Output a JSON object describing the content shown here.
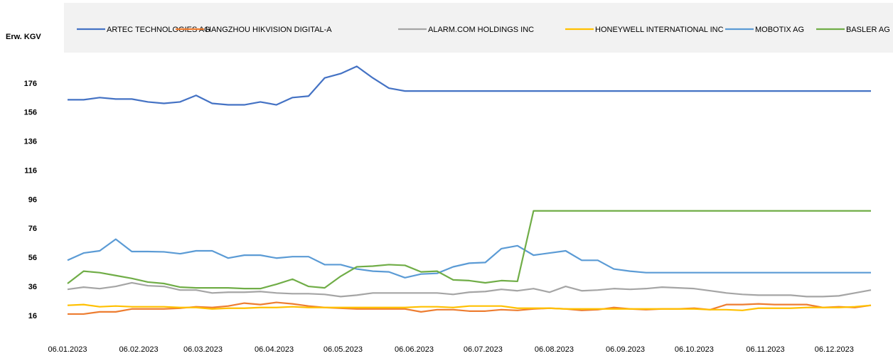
{
  "chart_data": {
    "type": "line",
    "y_label": "Erw. KGV",
    "x": [
      "06.01.2023",
      "13.01.2023",
      "20.01.2023",
      "27.01.2023",
      "03.02.2023",
      "10.02.2023",
      "17.02.2023",
      "24.02.2023",
      "03.03.2023",
      "10.03.2023",
      "17.03.2023",
      "24.03.2023",
      "31.03.2023",
      "07.04.2023",
      "14.04.2023",
      "21.04.2023",
      "28.04.2023",
      "05.05.2023",
      "12.05.2023",
      "19.05.2023",
      "26.05.2023",
      "02.06.2023",
      "09.06.2023",
      "16.06.2023",
      "23.06.2023",
      "30.06.2023",
      "07.07.2023",
      "14.07.2023",
      "21.07.2023",
      "28.07.2023",
      "04.08.2023",
      "11.08.2023",
      "18.08.2023",
      "25.08.2023",
      "01.09.2023",
      "08.09.2023",
      "15.09.2023",
      "22.09.2023",
      "29.09.2023",
      "06.10.2023",
      "13.10.2023",
      "20.10.2023",
      "27.10.2023",
      "03.11.2023",
      "10.11.2023",
      "17.11.2023",
      "24.11.2023",
      "01.12.2023",
      "08.12.2023",
      "15.12.2023",
      "22.12.2023"
    ],
    "xlim": [
      "06.01.2023",
      "22.12.2023"
    ],
    "xticks": [
      "06.01.2023",
      "06.02.2023",
      "06.03.2023",
      "06.04.2023",
      "06.05.2023",
      "06.06.2023",
      "06.07.2023",
      "06.08.2023",
      "06.09.2023",
      "06.10.2023",
      "06.11.2023",
      "06.12.2023"
    ],
    "ylim": [
      16,
      196
    ],
    "yticks": [
      16,
      36,
      56,
      76,
      96,
      116,
      136,
      156,
      176
    ],
    "series": [
      {
        "name": "ARTEC TECHNOLOGIES AG",
        "color": "#4472c4",
        "values": [
          165,
          165,
          166.5,
          165.5,
          165.5,
          163.5,
          162.5,
          163.5,
          168,
          162.5,
          161.5,
          161.5,
          163.5,
          161.5,
          166.5,
          167.5,
          180,
          183,
          188,
          180,
          173,
          171,
          171,
          171,
          171,
          171,
          171,
          171,
          171,
          171,
          171,
          171,
          171,
          171,
          171,
          171,
          171,
          171,
          171,
          171,
          171,
          171,
          171,
          171,
          171,
          171,
          171,
          171,
          171,
          171,
          171
        ]
      },
      {
        "name": "HANGZHOU HIKVISION DIGITAL-A",
        "color": "#ed7d31",
        "values": [
          17.5,
          17.5,
          19,
          19,
          21,
          21,
          21,
          21.5,
          22.5,
          22,
          23,
          25,
          24,
          25.5,
          24.5,
          23,
          22,
          21.5,
          21,
          21,
          21,
          21,
          19,
          20.5,
          20.5,
          19.5,
          19.5,
          20.5,
          20,
          21,
          21.5,
          21,
          20,
          20.5,
          22,
          21,
          20.5,
          21,
          21,
          21.5,
          20.5,
          24,
          24,
          24.5,
          24,
          24,
          24,
          22,
          22.5,
          22,
          23.5
        ]
      },
      {
        "name": "ALARM.COM HOLDINGS INC",
        "color": "#a5a5a5",
        "values": [
          34.5,
          36,
          35,
          36.5,
          39,
          37,
          36.5,
          34,
          34,
          32,
          32.5,
          32.5,
          33,
          32,
          31.5,
          31.5,
          31,
          29.5,
          30.5,
          32,
          32,
          32,
          32,
          32,
          31,
          32.5,
          33,
          34.5,
          33.5,
          35,
          32.5,
          36.5,
          33.5,
          34,
          35,
          34.5,
          35,
          36,
          35.5,
          35,
          33.5,
          32,
          31,
          30.5,
          30.5,
          30.5,
          29.5,
          29.5,
          30,
          32,
          34
        ]
      },
      {
        "name": "HONEYWELL INTERNATIONAL INC",
        "color": "#ffc000",
        "values": [
          23.5,
          24,
          22.5,
          23,
          22.5,
          22.5,
          22.5,
          22,
          22,
          21,
          21.5,
          21.5,
          22,
          22,
          22.5,
          22,
          22,
          22,
          22,
          22,
          22,
          22,
          22.5,
          22.5,
          22,
          23,
          23,
          23,
          21.5,
          21.5,
          21.5,
          21,
          21,
          21,
          21,
          21,
          21,
          21,
          21,
          21,
          20.5,
          20.5,
          20,
          21.5,
          21.5,
          21.5,
          22,
          22,
          22,
          22.5,
          23.5
        ]
      },
      {
        "name": "MOBOTIX AG",
        "color": "#5b9bd5",
        "values": [
          54.5,
          59.5,
          61,
          69,
          60.5,
          60.5,
          60.3,
          59,
          61,
          61,
          56,
          58,
          58,
          56,
          57,
          57,
          51.5,
          51.5,
          48.5,
          47,
          46.5,
          42.5,
          45,
          45.5,
          50,
          52.5,
          53,
          62.5,
          64.5,
          58,
          59.5,
          61,
          54.5,
          54.5,
          48.5,
          47,
          46,
          46,
          46,
          46,
          46,
          46,
          46,
          46,
          46,
          46,
          46,
          46,
          46,
          46,
          46
        ]
      },
      {
        "name": "BASLER AG",
        "color": "#70ad47",
        "values": [
          38.5,
          47,
          46,
          44,
          42,
          39.5,
          38.5,
          36,
          35.5,
          35.5,
          35.5,
          35,
          35,
          38,
          41.5,
          36.5,
          35.5,
          43.5,
          50,
          50.5,
          51.5,
          51,
          46.5,
          47,
          41,
          40.5,
          39,
          40.5,
          40,
          88.5,
          88.5,
          88.5,
          88.5,
          88.5,
          88.5,
          88.5,
          88.5,
          88.5,
          88.5,
          88.5,
          88.5,
          88.5,
          88.5,
          88.5,
          88.5,
          88.5,
          88.5,
          88.5,
          88.5,
          88.5,
          88.5
        ]
      }
    ]
  }
}
